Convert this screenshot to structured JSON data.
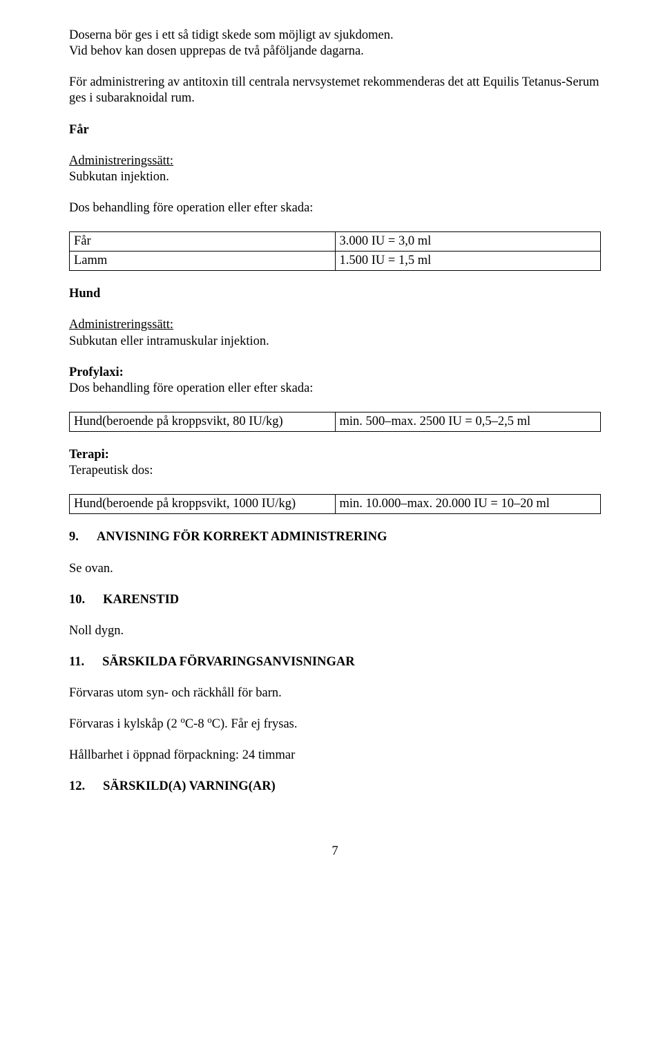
{
  "intro": {
    "p1a": "Doserna bör ges i ett så tidigt skede som möjligt av sjukdomen.",
    "p1b": "Vid behov kan dosen upprepas de två påföljande dagarna.",
    "p2": "För administrering av antitoxin till centrala nervsystemet rekommenderas det att Equilis Tetanus-Serum ges i subaraknoidal rum."
  },
  "far": {
    "title": "Får",
    "admin_label": "Administreringssätt:",
    "admin_value": "Subkutan injektion.",
    "dose_label": "Dos behandling före operation eller efter skada:",
    "table": {
      "rows": [
        {
          "c1": "Får",
          "c2": "3.000 IU = 3,0 ml"
        },
        {
          "c1": "Lamm",
          "c2": "1.500 IU = 1,5 ml"
        }
      ]
    }
  },
  "hund": {
    "title": "Hund",
    "admin_label": "Administreringssätt:",
    "admin_value": "Subkutan eller intramuskular injektion.",
    "profylaxi_label": "Profylaxi:",
    "profylaxi_text": "Dos behandling före operation eller efter skada:",
    "table1": {
      "rows": [
        {
          "c1": "Hund(beroende på kroppsvikt, 80 IU/kg)",
          "c2": "min. 500–max. 2500 IU = 0,5–2,5 ml"
        }
      ]
    },
    "terapi_label": "Terapi:",
    "terapi_text": "Terapeutisk dos:",
    "table2": {
      "rows": [
        {
          "c1": "Hund(beroende på kroppsvikt, 1000 IU/kg)",
          "c2": "min. 10.000–max. 20.000 IU = 10–20 ml"
        }
      ]
    }
  },
  "s9": {
    "num": "9.",
    "title": "ANVISNING FÖR KORREKT ADMINISTRERING",
    "body": "Se ovan."
  },
  "s10": {
    "num": "10.",
    "title": "KARENSTID",
    "body": "Noll dygn."
  },
  "s11": {
    "num": "11.",
    "title": "SÄRSKILDA FÖRVARINGSANVISNINGAR",
    "p1": "Förvaras utom syn- och räckhåll för barn.",
    "p2_pre": "Förvaras i kylskåp (2 ",
    "p2_deg1": "o",
    "p2_mid": "C-8 ",
    "p2_deg2": "o",
    "p2_post": "C). Får ej frysas.",
    "p3": "Hållbarhet i öppnad förpackning: 24 timmar"
  },
  "s12": {
    "num": "12.",
    "title": "SÄRSKILD(A) VARNING(AR)"
  },
  "page_number": "7"
}
